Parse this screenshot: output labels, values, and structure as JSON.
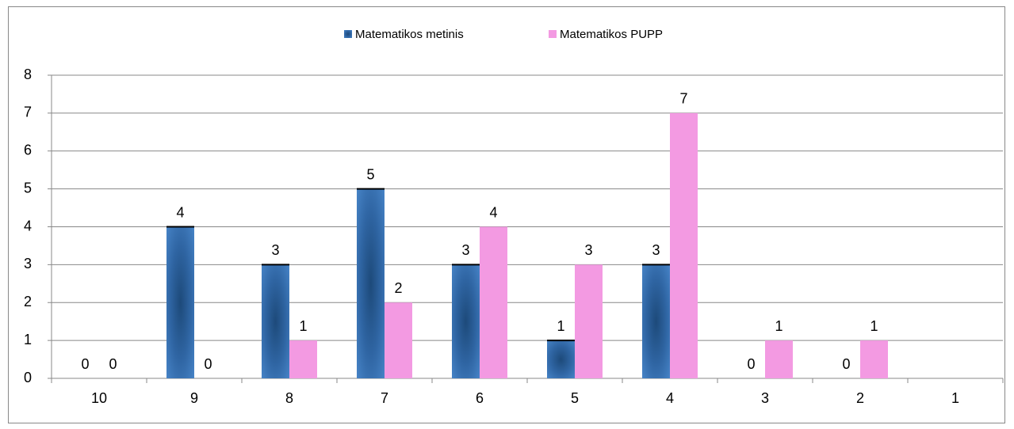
{
  "chart_data": {
    "type": "bar",
    "categories": [
      "10",
      "9",
      "8",
      "7",
      "6",
      "5",
      "4",
      "3",
      "2",
      "1"
    ],
    "series": [
      {
        "name": "Matematikos metinis",
        "color": "#3f78b8",
        "values": [
          0,
          4,
          3,
          5,
          3,
          1,
          3,
          0,
          0,
          null
        ]
      },
      {
        "name": "Matematikos PUPP",
        "color": "#f39ae2",
        "values": [
          0,
          0,
          1,
          2,
          4,
          3,
          7,
          1,
          1,
          null
        ]
      }
    ],
    "ylim": [
      0,
      8
    ],
    "yticks": [
      0,
      1,
      2,
      3,
      4,
      5,
      6,
      7,
      8
    ],
    "grid": true,
    "legend": "top"
  }
}
